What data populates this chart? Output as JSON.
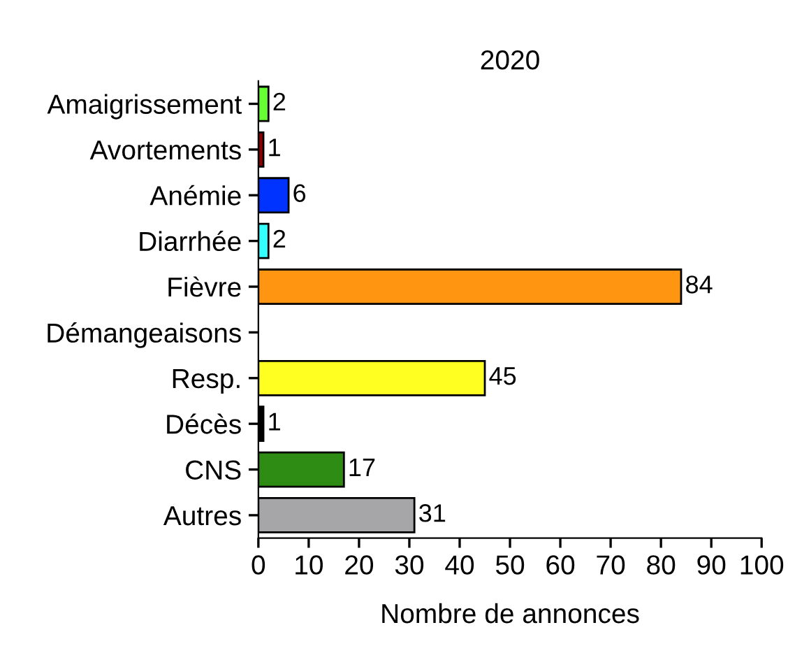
{
  "chart_data": {
    "type": "bar",
    "orientation": "horizontal",
    "title": "2020",
    "xlabel": "Nombre de annonces",
    "categories": [
      "Amaigrissement",
      "Avortements",
      "Anémie",
      "Diarrhée",
      "Fièvre",
      "Démangeaisons",
      "Resp.",
      "Décès",
      "CNS",
      "Autres"
    ],
    "values": [
      2,
      1,
      6,
      2,
      84,
      null,
      45,
      1,
      17,
      31
    ],
    "value_labels": [
      "2",
      "1",
      "6",
      "2",
      "84",
      null,
      "45",
      "1",
      "17",
      "31"
    ],
    "colors": [
      "#66ff33",
      "#8b0000",
      "#0033ff",
      "#33ffff",
      "#ff9511",
      "#ffffff",
      "#ffff22",
      "#000000",
      "#2e8b14",
      "#a6a6a8"
    ],
    "xlim": [
      0,
      100
    ],
    "xticks": [
      0,
      10,
      20,
      30,
      40,
      50,
      60,
      70,
      80,
      90,
      100
    ],
    "grid": false,
    "legend": false
  }
}
